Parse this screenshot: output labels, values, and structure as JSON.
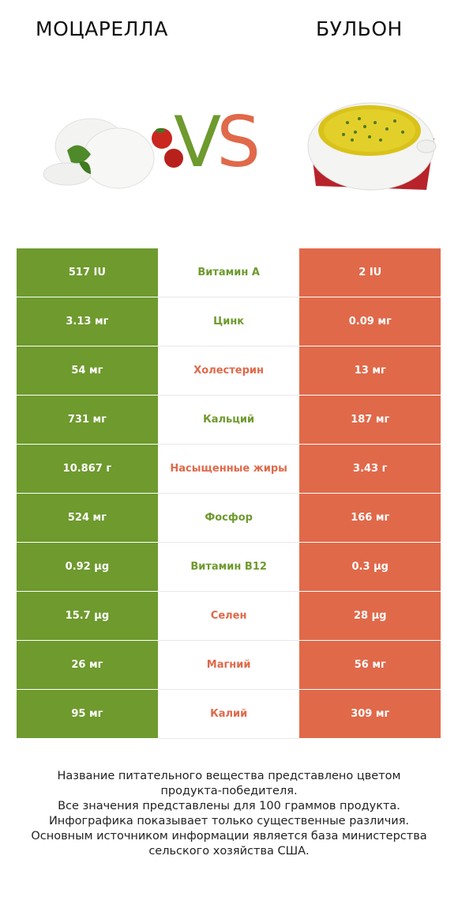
{
  "header": {
    "left_title": "МОЦАРЕЛЛА",
    "right_title": "БУЛЬОН",
    "vs_v": "V",
    "vs_s": "S"
  },
  "colors": {
    "left": "#6e9a2e",
    "right": "#e0694a"
  },
  "rows": [
    {
      "left": "517 IU",
      "name": "Витамин A",
      "right": "2 IU",
      "winner": "left"
    },
    {
      "left": "3.13 мг",
      "name": "Цинк",
      "right": "0.09 мг",
      "winner": "left"
    },
    {
      "left": "54 мг",
      "name": "Холестерин",
      "right": "13 мг",
      "winner": "right"
    },
    {
      "left": "731 мг",
      "name": "Кальций",
      "right": "187 мг",
      "winner": "left"
    },
    {
      "left": "10.867 г",
      "name": "Насыщенные жиры",
      "right": "3.43 г",
      "winner": "right"
    },
    {
      "left": "524 мг",
      "name": "Фосфор",
      "right": "166 мг",
      "winner": "left"
    },
    {
      "left": "0.92 µg",
      "name": "Витамин B12",
      "right": "0.3 µg",
      "winner": "left"
    },
    {
      "left": "15.7 µg",
      "name": "Селен",
      "right": "28 µg",
      "winner": "right"
    },
    {
      "left": "26 мг",
      "name": "Магний",
      "right": "56 мг",
      "winner": "right"
    },
    {
      "left": "95 мг",
      "name": "Калий",
      "right": "309 мг",
      "winner": "right"
    }
  ],
  "footer": [
    "Название питательного вещества представлено цветом",
    "продукта-победителя.",
    "Все значения представлены для 100 граммов продукта.",
    "Инфографика показывает только существенные различия.",
    "Основным источником информации является база министерства",
    "сельского хозяйства США."
  ]
}
